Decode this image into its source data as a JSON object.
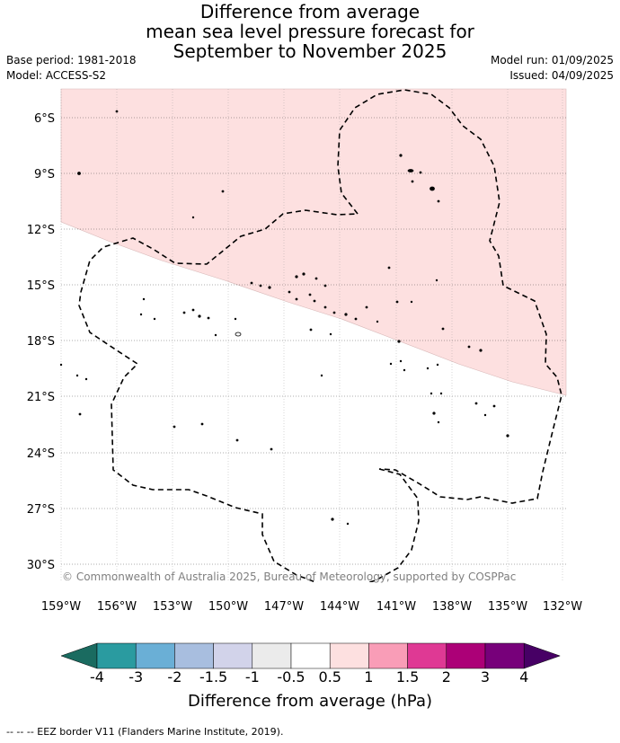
{
  "title": {
    "line1": "Difference from average",
    "line2": "mean sea level pressure forecast for",
    "line3": "September to November 2025"
  },
  "meta": {
    "base_period": "Base period: 1981-2018",
    "model": "Model: ACCESS-S2",
    "model_run": "Model run: 01/09/2025",
    "issued": "Issued: 04/09/2025"
  },
  "map": {
    "lat_labels": [
      "6°S",
      "9°S",
      "12°S",
      "15°S",
      "18°S",
      "21°S",
      "24°S",
      "27°S",
      "30°S"
    ],
    "lon_labels": [
      "159°W",
      "156°W",
      "153°W",
      "150°W",
      "147°W",
      "144°W",
      "141°W",
      "138°W",
      "135°W",
      "132°W"
    ],
    "copyright": "© Commonwealth of Australia 2025, Bureau of Meteorology, supported by COSPPac",
    "anomaly_region": "0.5 to 1",
    "anomaly_color": "#fde0e0"
  },
  "colorbar": {
    "ticks": [
      "-4",
      "-3",
      "-2",
      "-1.5",
      "-1",
      "-0.5",
      "0.5",
      "1",
      "1.5",
      "2",
      "3",
      "4"
    ],
    "colors": [
      "#1a6b60",
      "#2a9ba0",
      "#6aafd6",
      "#a8bedf",
      "#d2d3ea",
      "#ebebeb",
      "#ffffff",
      "#fde0e0",
      "#f99db7",
      "#df3994",
      "#ac0077",
      "#77007a",
      "#470065"
    ],
    "label": "Difference from average (hPa)"
  },
  "footer": "-- -- -- EEZ border V11 (Flanders Marine Institute, 2019)."
}
